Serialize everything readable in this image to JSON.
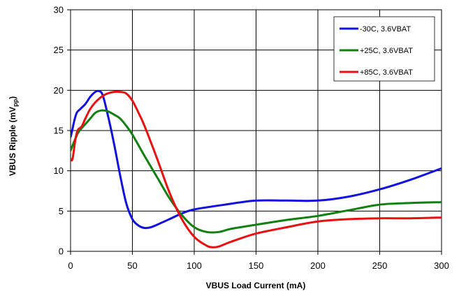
{
  "chart_data": {
    "type": "line",
    "xlabel": "VBUS Load Current (mA)",
    "ylabel": {
      "main": "VBUS Ripple (mV",
      "sub": "pp",
      "end": ")"
    },
    "xlim": [
      0,
      300
    ],
    "ylim": [
      0,
      30
    ],
    "xticks": [
      0,
      50,
      100,
      150,
      200,
      250,
      300
    ],
    "yticks": [
      0,
      5,
      10,
      15,
      20,
      25,
      30
    ],
    "grid": true,
    "legend_position": "top-right",
    "series": [
      {
        "name": "-30C, 3.6VBAT",
        "color": "#1010e0",
        "x": [
          0,
          1,
          3,
          5,
          8,
          12,
          16,
          20,
          23,
          26,
          30,
          35,
          40,
          45,
          50,
          55,
          60,
          65,
          70,
          80,
          90,
          100,
          125,
          150,
          175,
          200,
          225,
          250,
          275,
          300
        ],
        "y": [
          14.2,
          14.8,
          16.2,
          17.2,
          17.7,
          18.3,
          19.2,
          19.8,
          19.9,
          19.4,
          17.0,
          13.5,
          9.5,
          6.0,
          4.0,
          3.2,
          2.9,
          3.0,
          3.3,
          4.0,
          4.7,
          5.2,
          5.8,
          6.3,
          6.3,
          6.3,
          6.8,
          7.7,
          8.9,
          10.3
        ]
      },
      {
        "name": "+25C, 3.6VBAT",
        "color": "#108010",
        "x": [
          0,
          2,
          4,
          6,
          9,
          12,
          16,
          20,
          25,
          30,
          35,
          40,
          45,
          50,
          60,
          70,
          80,
          90,
          100,
          110,
          120,
          130,
          150,
          175,
          200,
          225,
          250,
          275,
          300
        ],
        "y": [
          12.5,
          13.3,
          14.0,
          14.7,
          15.3,
          15.8,
          16.5,
          17.2,
          17.5,
          17.4,
          17.0,
          16.5,
          15.6,
          14.5,
          11.8,
          9.2,
          6.6,
          4.5,
          3.0,
          2.4,
          2.4,
          2.8,
          3.3,
          3.9,
          4.4,
          5.1,
          5.8,
          6.0,
          6.1
        ]
      },
      {
        "name": "+85C, 3.6VBAT",
        "color": "#e81010",
        "x": [
          0,
          1,
          2,
          4,
          6,
          9,
          12,
          16,
          20,
          25,
          30,
          35,
          40,
          45,
          50,
          55,
          60,
          70,
          80,
          90,
          100,
          110,
          115,
          120,
          130,
          150,
          175,
          200,
          225,
          250,
          275,
          300
        ],
        "y": [
          11.5,
          11.3,
          11.8,
          14.0,
          15.1,
          15.5,
          16.5,
          17.7,
          18.5,
          19.2,
          19.6,
          19.8,
          19.8,
          19.6,
          18.7,
          17.2,
          15.5,
          11.5,
          7.3,
          4.0,
          1.8,
          0.7,
          0.5,
          0.6,
          1.2,
          2.2,
          3.0,
          3.7,
          4.0,
          4.1,
          4.1,
          4.2
        ]
      }
    ]
  }
}
